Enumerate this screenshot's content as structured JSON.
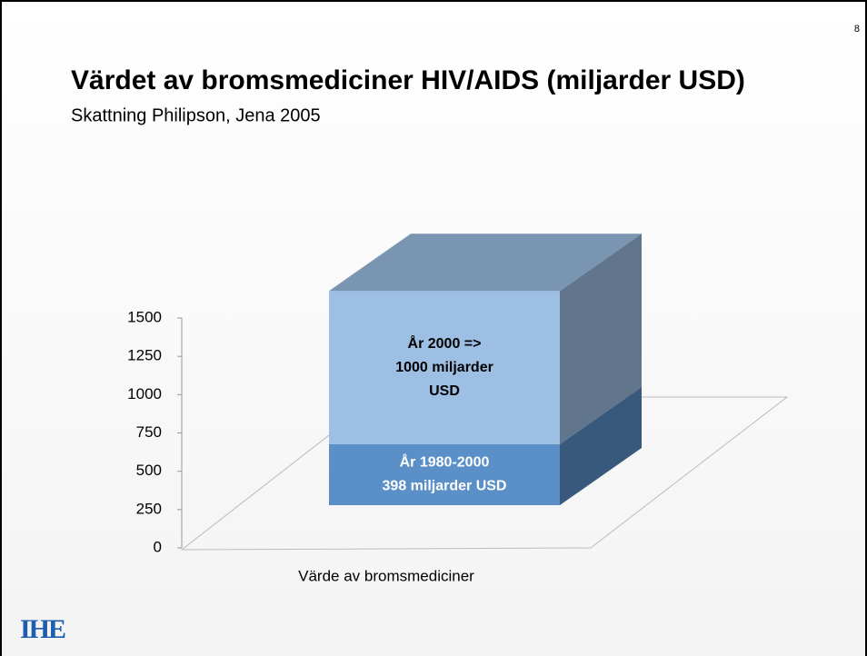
{
  "page_number": "8",
  "logo": "IHE",
  "chart_data": {
    "type": "bar3d-stacked",
    "title": "Värdet av bromsmediciner HIV/AIDS (miljarder USD)",
    "subtitle": "Skattning Philipson, Jena 2005",
    "categories": [
      "Värde av bromsmediciner"
    ],
    "series": [
      {
        "color": "#5b8fc7",
        "values": [
          398
        ],
        "value_labels": [
          [
            "År 1980-2000",
            "398 miljarder USD"
          ]
        ]
      },
      {
        "color": "#9dbfe3",
        "values": [
          1000
        ],
        "value_labels": [
          [
            "År 2000 =>",
            "1000 miljarder",
            "USD"
          ]
        ]
      }
    ],
    "ylim": [
      0,
      1500
    ],
    "yticks": [
      0,
      250,
      500,
      750,
      1000,
      1250,
      1500
    ]
  }
}
